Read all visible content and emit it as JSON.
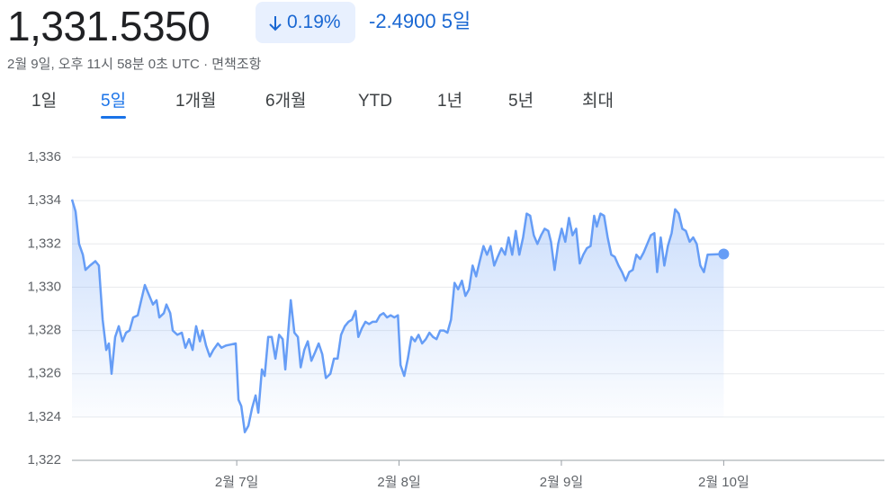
{
  "header": {
    "price": "1,331.5350",
    "change_percent": "0.19%",
    "change": "-2.4900",
    "period": "5일",
    "timestamp": "2월 9일, 오후 11시 58분 0초 UTC",
    "separator": "·",
    "disclaimer": "면책조항"
  },
  "tabs": {
    "items": [
      "1일",
      "5일",
      "1개월",
      "6개월",
      "YTD",
      "1년",
      "5년",
      "최대"
    ],
    "selected": 1
  },
  "chart_data": {
    "type": "line",
    "x": [
      5.985,
      6.007,
      6.029,
      6.052,
      6.068,
      6.096,
      6.129,
      6.151,
      6.174,
      6.196,
      6.212,
      6.229,
      6.251,
      6.273,
      6.296,
      6.318,
      6.34,
      6.362,
      6.39,
      6.412,
      6.434,
      6.456,
      6.484,
      6.506,
      6.523,
      6.551,
      6.567,
      6.59,
      6.606,
      6.634,
      6.662,
      6.684,
      6.706,
      6.728,
      6.75,
      6.773,
      6.789,
      6.811,
      6.834,
      6.856,
      6.884,
      6.906,
      6.933,
      6.994,
      7.011,
      7.028,
      7.05,
      7.072,
      7.094,
      7.116,
      7.133,
      7.155,
      7.172,
      7.194,
      7.216,
      7.238,
      7.261,
      7.283,
      7.299,
      7.333,
      7.355,
      7.377,
      7.394,
      7.416,
      7.438,
      7.46,
      7.483,
      7.505,
      7.527,
      7.549,
      7.577,
      7.599,
      7.621,
      7.643,
      7.666,
      7.688,
      7.71,
      7.732,
      7.749,
      7.771,
      7.793,
      7.815,
      7.837,
      7.86,
      7.882,
      7.904,
      7.926,
      7.948,
      7.971,
      7.993,
      8.009,
      8.032,
      8.054,
      8.076,
      8.098,
      8.12,
      8.142,
      8.165,
      8.187,
      8.209,
      8.231,
      8.253,
      8.276,
      8.298,
      8.32,
      8.342,
      8.364,
      8.387,
      8.409,
      8.431,
      8.453,
      8.475,
      8.497,
      8.52,
      8.542,
      8.564,
      8.586,
      8.608,
      8.631,
      8.653,
      8.675,
      8.697,
      8.719,
      8.741,
      8.764,
      8.786,
      8.808,
      8.83,
      8.852,
      8.875,
      8.897,
      8.919,
      8.936,
      8.958,
      8.98,
      9.002,
      9.024,
      9.047,
      9.069,
      9.091,
      9.113,
      9.135,
      9.157,
      9.18,
      9.202,
      9.218,
      9.241,
      9.263,
      9.285,
      9.307,
      9.329,
      9.352,
      9.374,
      9.396,
      9.418,
      9.44,
      9.462,
      9.485,
      9.507,
      9.529,
      9.551,
      9.573,
      9.59,
      9.612,
      9.634,
      9.656,
      9.679,
      9.701,
      9.723,
      9.745,
      9.767,
      9.79,
      9.812,
      9.834,
      9.856,
      9.878,
      9.901,
      10.0
    ],
    "series": [
      {
        "color": "#669df6",
        "values": [
          1334.05,
          1333.5,
          1332.0,
          1331.5,
          1330.8,
          1331.0,
          1331.2,
          1331.0,
          1328.5,
          1327.1,
          1327.4,
          1326.0,
          1327.7,
          1328.2,
          1327.5,
          1327.9,
          1328.0,
          1328.6,
          1328.7,
          1329.4,
          1330.1,
          1329.7,
          1329.2,
          1329.4,
          1328.6,
          1328.8,
          1329.2,
          1328.8,
          1328.0,
          1327.8,
          1327.9,
          1327.2,
          1327.6,
          1327.1,
          1328.2,
          1327.5,
          1328.0,
          1327.3,
          1326.8,
          1327.1,
          1327.4,
          1327.2,
          1327.3,
          1327.4,
          1324.8,
          1324.5,
          1323.3,
          1323.6,
          1324.4,
          1325.0,
          1324.2,
          1326.2,
          1325.9,
          1327.7,
          1327.7,
          1326.7,
          1327.8,
          1327.6,
          1326.2,
          1329.4,
          1327.9,
          1327.7,
          1326.3,
          1327.1,
          1327.5,
          1326.6,
          1327.0,
          1327.4,
          1326.9,
          1325.8,
          1326.0,
          1326.7,
          1326.7,
          1327.8,
          1328.2,
          1328.4,
          1328.5,
          1328.9,
          1327.7,
          1328.1,
          1328.4,
          1328.3,
          1328.4,
          1328.4,
          1328.7,
          1328.8,
          1328.6,
          1328.7,
          1328.6,
          1328.7,
          1326.4,
          1325.9,
          1326.7,
          1327.7,
          1327.5,
          1327.8,
          1327.4,
          1327.6,
          1327.9,
          1327.7,
          1327.6,
          1328.0,
          1328.0,
          1327.9,
          1328.5,
          1330.2,
          1329.9,
          1330.3,
          1329.6,
          1329.9,
          1331.0,
          1330.5,
          1331.2,
          1331.9,
          1331.5,
          1331.9,
          1331.0,
          1331.4,
          1331.8,
          1331.5,
          1332.3,
          1331.5,
          1332.6,
          1331.5,
          1332.3,
          1333.4,
          1333.3,
          1332.4,
          1332.0,
          1332.4,
          1332.7,
          1332.6,
          1332.1,
          1330.8,
          1332.0,
          1332.7,
          1332.1,
          1333.2,
          1332.4,
          1332.7,
          1331.1,
          1331.5,
          1331.8,
          1331.9,
          1333.3,
          1332.8,
          1333.4,
          1333.3,
          1332.3,
          1331.5,
          1331.4,
          1331.0,
          1330.7,
          1330.3,
          1330.7,
          1330.8,
          1331.5,
          1331.3,
          1331.6,
          1332.0,
          1332.4,
          1332.5,
          1330.7,
          1332.3,
          1331.0,
          1331.9,
          1332.5,
          1333.6,
          1333.4,
          1332.7,
          1332.6,
          1332.1,
          1332.3,
          1332.0,
          1331.0,
          1330.7,
          1331.5,
          1331.535
        ]
      }
    ],
    "xlim": [
      5.985,
      10.99
    ],
    "ylim": [
      1322,
      1336
    ],
    "xticks": [
      {
        "value": 7,
        "label": "2월 7일"
      },
      {
        "value": 8,
        "label": "2월 8일"
      },
      {
        "value": 9,
        "label": "2월 9일"
      },
      {
        "value": 10,
        "label": "2월 10일"
      }
    ],
    "yticks": [
      {
        "value": 1322,
        "label": "1,322"
      },
      {
        "value": 1324,
        "label": "1,324"
      },
      {
        "value": 1326,
        "label": "1,326"
      },
      {
        "value": 1328,
        "label": "1,328"
      },
      {
        "value": 1330,
        "label": "1,330"
      },
      {
        "value": 1332,
        "label": "1,332"
      },
      {
        "value": 1334,
        "label": "1,334"
      },
      {
        "value": 1336,
        "label": "1,336"
      }
    ],
    "grid": true
  }
}
